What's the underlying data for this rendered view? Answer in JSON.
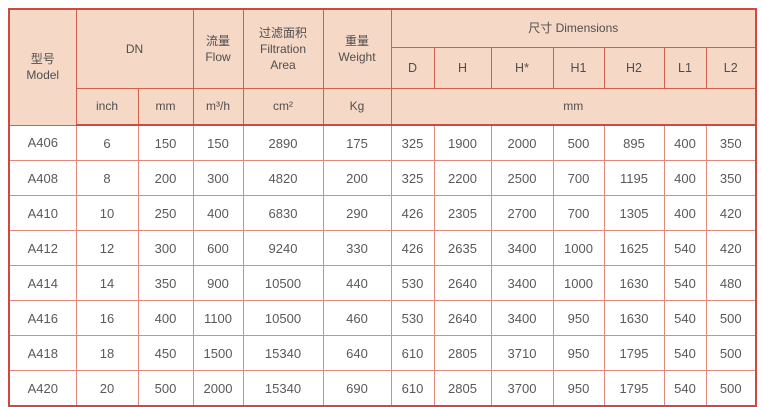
{
  "colors": {
    "header_bg": "#f6d8c6",
    "header_border": "#d2604a",
    "outer_border": "#cc4a42",
    "data_border": "#e28878",
    "header_text": "#4f4f4f",
    "data_text": "#58595b"
  },
  "table": {
    "header": {
      "model": "型号\nModel",
      "dn": "DN",
      "flow": "流量\nFlow",
      "filtration_area": "过滤面积\nFiltration\nArea",
      "weight": "重量\nWeight",
      "dimensions": "尺寸 Dimensions",
      "dim_columns": [
        "D",
        "H",
        "H*",
        "H1",
        "H2",
        "L1",
        "L2"
      ],
      "units": {
        "inch": "inch",
        "mm": "mm",
        "flow": "m³/h",
        "area": "cm²",
        "weight": "Kg",
        "dims": "mm"
      }
    },
    "rows": [
      [
        "A406",
        "6",
        "150",
        "150",
        "2890",
        "175",
        "325",
        "1900",
        "2000",
        "500",
        "895",
        "400",
        "350"
      ],
      [
        "A408",
        "8",
        "200",
        "300",
        "4820",
        "200",
        "325",
        "2200",
        "2500",
        "700",
        "1195",
        "400",
        "350"
      ],
      [
        "A410",
        "10",
        "250",
        "400",
        "6830",
        "290",
        "426",
        "2305",
        "2700",
        "700",
        "1305",
        "400",
        "420"
      ],
      [
        "A412",
        "12",
        "300",
        "600",
        "9240",
        "330",
        "426",
        "2635",
        "3400",
        "1000",
        "1625",
        "540",
        "420"
      ],
      [
        "A414",
        "14",
        "350",
        "900",
        "10500",
        "440",
        "530",
        "2640",
        "3400",
        "1000",
        "1630",
        "540",
        "480"
      ],
      [
        "A416",
        "16",
        "400",
        "1100",
        "10500",
        "460",
        "530",
        "2640",
        "3400",
        "950",
        "1630",
        "540",
        "500"
      ],
      [
        "A418",
        "18",
        "450",
        "1500",
        "15340",
        "640",
        "610",
        "2805",
        "3710",
        "950",
        "1795",
        "540",
        "500"
      ],
      [
        "A420",
        "20",
        "500",
        "2000",
        "15340",
        "690",
        "610",
        "2805",
        "3700",
        "950",
        "1795",
        "540",
        "500"
      ]
    ]
  }
}
